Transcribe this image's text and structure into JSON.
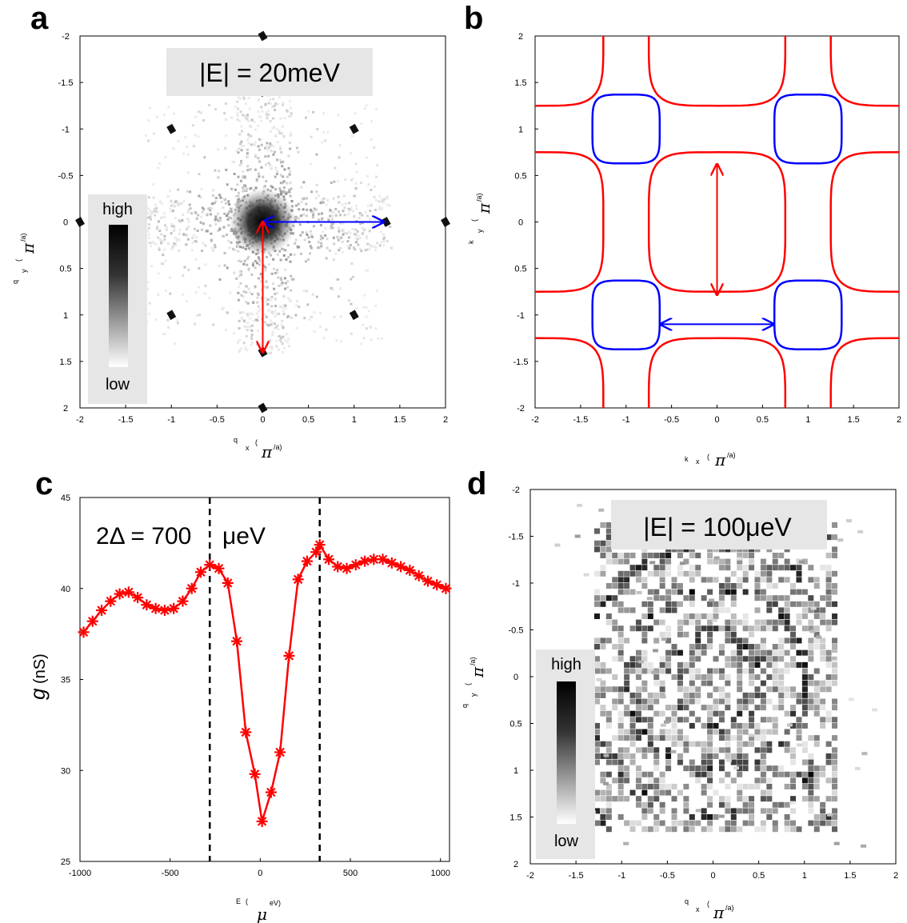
{
  "chart_data": [
    {
      "panel": "a",
      "type": "heatmap",
      "banner": "|E| = 20meV",
      "colorbar": {
        "high": "high",
        "low": "low"
      },
      "xaxis": {
        "label_main": "q",
        "label_sub": "x",
        "label_open": "(",
        "label_pi": "π",
        "label_unit": "/a)",
        "range": [
          -2,
          2
        ],
        "ticks": [
          "-2",
          "-1.5",
          "-1",
          "-0.5",
          "0",
          "0.5",
          "1",
          "1.5",
          "2"
        ]
      },
      "yaxis": {
        "label_main": "q",
        "label_sub": "y",
        "label_open": "(",
        "label_pi": "π",
        "label_unit": "/a)",
        "range": [
          -2,
          2
        ],
        "reversed": true,
        "ticks": [
          "-2",
          "-1.5",
          "-1",
          "-0.5",
          "0",
          "0.5",
          "1",
          "1.5",
          "2"
        ]
      },
      "arrows": [
        {
          "color": "#0000ff",
          "from": [
            0,
            0
          ],
          "to": [
            1.32,
            0
          ]
        },
        {
          "color": "#ff0000",
          "from": [
            0,
            0
          ],
          "to": [
            0,
            1.4
          ]
        }
      ]
    },
    {
      "panel": "b",
      "type": "line",
      "xaxis": {
        "label_main": "k",
        "label_sub": "x",
        "label_open": "(",
        "label_pi": "π",
        "label_unit": "/a)",
        "range": [
          -2,
          2
        ],
        "ticks": [
          "-2",
          "-1.5",
          "-1",
          "-0.5",
          "0",
          "0.5",
          "1",
          "1.5",
          "2"
        ]
      },
      "yaxis": {
        "label_main": "k",
        "label_sub": "y",
        "label_open": "(",
        "label_pi": "π",
        "label_unit": "/a)",
        "range": [
          -2,
          2
        ],
        "ticks": [
          "2",
          "1.5",
          "1",
          "0.5",
          "0",
          "0.5",
          "-1",
          "-1.5",
          "-2"
        ]
      },
      "curves": [
        {
          "color": "#ff0000",
          "shape": "large-square",
          "centers": [
            [
              0,
              0
            ],
            [
              -2,
              -2
            ],
            [
              -2,
              2
            ],
            [
              2,
              -2
            ],
            [
              2,
              2
            ],
            [
              0,
              -2
            ],
            [
              0,
              2
            ],
            [
              -2,
              0
            ],
            [
              2,
              0
            ]
          ],
          "half_width": 0.75
        },
        {
          "color": "#0000ff",
          "shape": "small-square",
          "centers": [
            [
              -1,
              1
            ],
            [
              1,
              1
            ],
            [
              -1,
              -1
            ],
            [
              1,
              -1
            ]
          ],
          "half_width": 0.37
        }
      ],
      "arrows": [
        {
          "color": "#ff0000",
          "from": [
            0,
            0.62
          ],
          "to": [
            0,
            -0.78
          ]
        },
        {
          "color": "#0000ff",
          "from": [
            -0.62,
            -1.1
          ],
          "to": [
            0.62,
            -1.1
          ]
        }
      ]
    },
    {
      "panel": "c",
      "type": "line",
      "annotation_left": "2Δ = 700",
      "annotation_right": "μeV",
      "xlabel_main": "E",
      "xlabel_open": "(",
      "xlabel_mu": "μ",
      "xlabel_unit": "eV)",
      "ylabel_symbol": "g",
      "ylabel_unit": "(nS)",
      "xlim": [
        -1000,
        1050
      ],
      "ylim": [
        25,
        45
      ],
      "xticks": [
        -1000,
        -500,
        0,
        500,
        1000
      ],
      "yticks": [
        25,
        30,
        35,
        40,
        45
      ],
      "vlines": [
        -280,
        330
      ],
      "series": [
        {
          "color": "#ff0000",
          "marker": "asterisk",
          "x": [
            -980,
            -930,
            -880,
            -830,
            -780,
            -730,
            -680,
            -630,
            -580,
            -530,
            -480,
            -430,
            -380,
            -330,
            -280,
            -230,
            -180,
            -130,
            -80,
            -30,
            10,
            60,
            110,
            160,
            210,
            260,
            310,
            330,
            380,
            430,
            480,
            530,
            580,
            630,
            680,
            730,
            780,
            830,
            880,
            930,
            980,
            1030
          ],
          "values": [
            37.6,
            38.2,
            38.8,
            39.3,
            39.7,
            39.8,
            39.5,
            39.1,
            38.9,
            38.8,
            38.9,
            39.3,
            40.0,
            40.9,
            41.3,
            41.1,
            40.3,
            37.1,
            32.1,
            29.8,
            27.2,
            28.8,
            31.0,
            36.3,
            40.5,
            41.5,
            42.0,
            42.4,
            41.6,
            41.2,
            41.1,
            41.3,
            41.5,
            41.6,
            41.6,
            41.4,
            41.2,
            41.0,
            40.7,
            40.4,
            40.2,
            40.0
          ]
        }
      ]
    },
    {
      "panel": "d",
      "type": "heatmap",
      "banner": "|E| = 100μeV",
      "colorbar": {
        "high": "high",
        "low": "low"
      },
      "xaxis": {
        "label_main": "q",
        "label_sub": "x",
        "label_open": "(",
        "label_pi": "π",
        "label_unit": "/a)",
        "range": [
          -2,
          2
        ],
        "ticks": [
          "-2",
          "-1.5",
          "-1",
          "-0.5",
          "0",
          "0.5",
          "1",
          "1.5",
          "2"
        ]
      },
      "yaxis": {
        "label_main": "q",
        "label_sub": "y",
        "label_open": "(",
        "label_pi": "π",
        "label_unit": "/a)",
        "range": [
          -2,
          2
        ],
        "reversed": true,
        "ticks": [
          "-2",
          "-1.5",
          "-1",
          "-0.5",
          "0",
          "0.5",
          "1",
          "1.5",
          "2"
        ]
      }
    }
  ],
  "panel_labels": [
    "a",
    "b",
    "c",
    "d"
  ]
}
